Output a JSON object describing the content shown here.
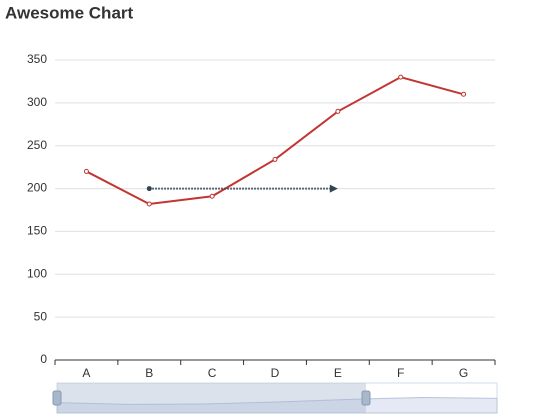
{
  "chart_data": {
    "type": "line",
    "title": "Awesome Chart",
    "categories": [
      "A",
      "B",
      "C",
      "D",
      "E",
      "F",
      "G"
    ],
    "values": [
      220,
      182,
      191,
      234,
      290,
      330,
      310
    ],
    "color": "#c23531",
    "ylim": [
      0,
      350
    ],
    "yticks": [
      0,
      50,
      100,
      150,
      200,
      250,
      300,
      350
    ],
    "grid": true,
    "mark_line": {
      "y": 200,
      "x_from": "B",
      "x_to": "E",
      "color": "#2f4554"
    }
  }
}
